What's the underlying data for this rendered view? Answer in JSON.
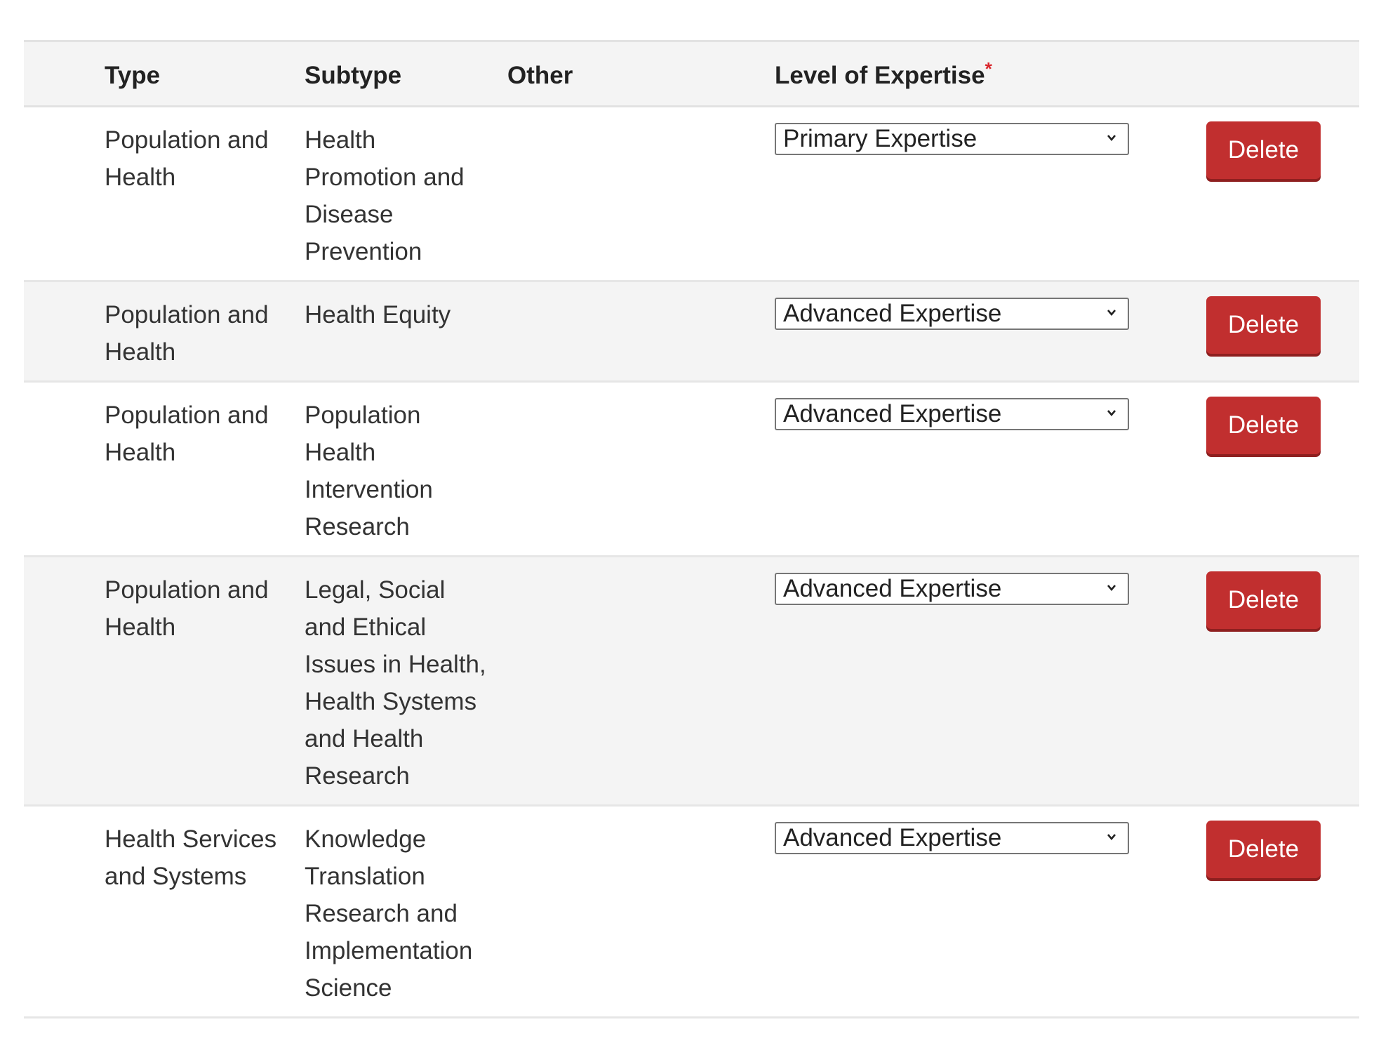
{
  "header": {
    "type": "Type",
    "subtype": "Subtype",
    "other": "Other",
    "level": "Level of Expertise",
    "required_mark": "*"
  },
  "rows": [
    {
      "type": "Population and Health",
      "subtype": "Health Promotion and Disease Prevention",
      "other": "",
      "level": "Primary Expertise",
      "delete": "Delete"
    },
    {
      "type": "Population and Health",
      "subtype": "Health Equity",
      "other": "",
      "level": "Advanced Expertise",
      "delete": "Delete"
    },
    {
      "type": "Population and Health",
      "subtype": "Population Health Intervention Research",
      "other": "",
      "level": "Advanced Expertise",
      "delete": "Delete"
    },
    {
      "type": "Population and Health",
      "subtype": "Legal, Social and Ethical Issues in Health, Health Systems and Health Research",
      "other": "",
      "level": "Advanced Expertise",
      "delete": "Delete"
    },
    {
      "type": "Health Services and Systems",
      "subtype": "Knowledge Translation Research and Implementation Science",
      "other": "",
      "level": "Advanced Expertise",
      "delete": "Delete"
    }
  ],
  "colors": {
    "delete_button": "#c12f2f",
    "required": "#d9242a",
    "row_alt": "#f4f4f4"
  }
}
